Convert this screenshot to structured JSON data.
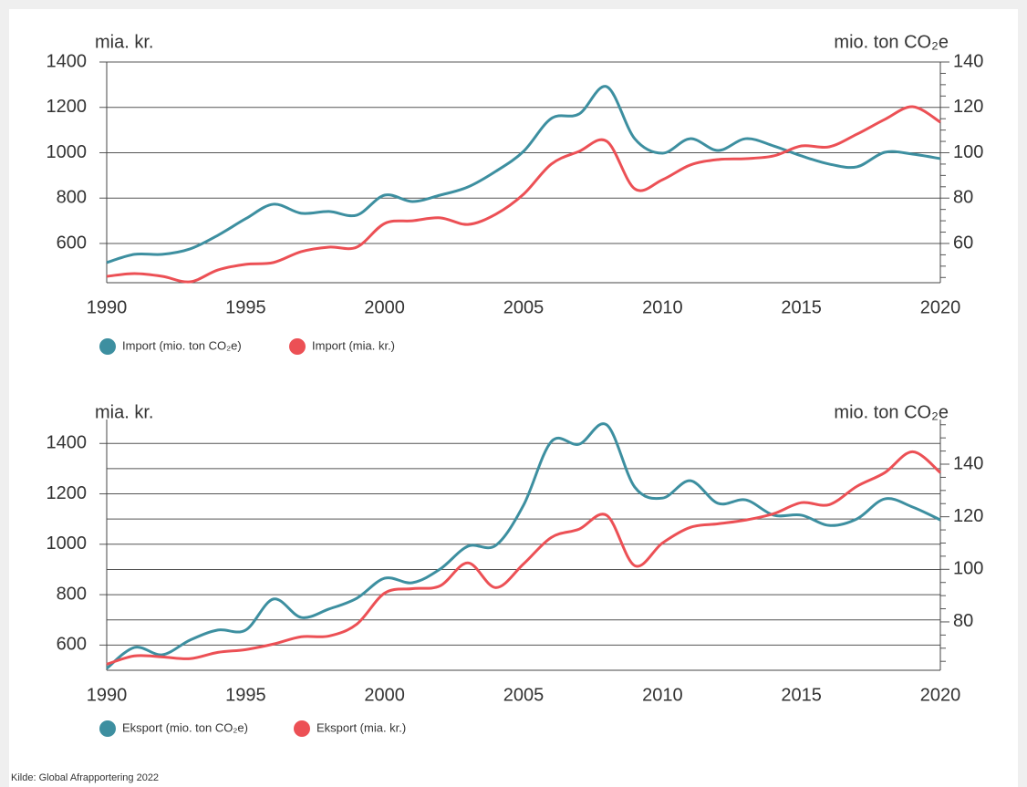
{
  "chart_data": [
    {
      "type": "line",
      "ylabel": "mia. kr.",
      "y2label": "mio. ton CO₂e",
      "x": [
        1990,
        1991,
        1992,
        1993,
        1994,
        1995,
        1996,
        1997,
        1998,
        1999,
        2000,
        2001,
        2002,
        2003,
        2004,
        2005,
        2006,
        2007,
        2008,
        2009,
        2010,
        2011,
        2012,
        2013,
        2014,
        2015,
        2016,
        2017,
        2018,
        2019,
        2020
      ],
      "xlim": [
        1990,
        2020
      ],
      "xticks": [
        1990,
        1995,
        2000,
        2005,
        2010,
        2015,
        2020
      ],
      "ylim": [
        427,
        1400
      ],
      "yticks": [
        600,
        800,
        1000,
        1200,
        1400
      ],
      "y2lim": [
        42.7,
        140
      ],
      "y2ticks": [
        60,
        80,
        100,
        120,
        140
      ],
      "y2minor": [
        45,
        50,
        55,
        65,
        70,
        75,
        85,
        90,
        95,
        105,
        110,
        115,
        125,
        130,
        135
      ],
      "grid": true,
      "series": [
        {
          "name": "Import (mio. ton CO₂e)",
          "color": "#3d8fa0",
          "axis": "y2",
          "values": [
            51.6,
            55.2,
            55.2,
            57.6,
            63.6,
            70.9,
            77.3,
            73.3,
            74.1,
            72.5,
            81.3,
            78.5,
            81.3,
            84.9,
            91.8,
            100.6,
            115.1,
            117.1,
            129.1,
            106.2,
            99.8,
            106.2,
            101,
            106.2,
            103,
            98.6,
            95,
            93.8,
            100.2,
            99.4,
            97.4
          ]
        },
        {
          "name": "Import (mia. kr.)",
          "color": "#ec5055",
          "values": [
            455,
            467,
            455,
            431,
            483,
            508,
            516,
            564,
            584,
            584,
            688,
            700,
            713,
            684,
            729,
            817,
            950,
            1006,
            1050,
            841,
            881,
            946,
            970,
            974,
            986,
            1030,
            1026,
            1082,
            1147,
            1203,
            1135
          ]
        }
      ]
    },
    {
      "type": "line",
      "ylabel": "mia. kr.",
      "y2label": "mio. ton CO₂e",
      "x": [
        1990,
        1991,
        1992,
        1993,
        1994,
        1995,
        1996,
        1997,
        1998,
        1999,
        2000,
        2001,
        2002,
        2003,
        2004,
        2005,
        2006,
        2007,
        2008,
        2009,
        2010,
        2011,
        2012,
        2013,
        2014,
        2015,
        2016,
        2017,
        2018,
        2019,
        2020
      ],
      "xlim": [
        1990,
        2020
      ],
      "xticks": [
        1990,
        1995,
        2000,
        2005,
        2010,
        2015,
        2020
      ],
      "ylim": [
        500,
        1495
      ],
      "yticks": [
        600,
        800,
        1000,
        1200,
        1400
      ],
      "yminor": [
        700,
        900,
        1100,
        1300
      ],
      "y2lim": [
        61.6,
        157
      ],
      "y2ticks": [
        80,
        100,
        120,
        140
      ],
      "y2minor": [
        65,
        70,
        75,
        85,
        90,
        95,
        105,
        110,
        115,
        125,
        130,
        135,
        145,
        150,
        155
      ],
      "grid": true,
      "series": [
        {
          "name": "Eksport (mio. ton CO₂e)",
          "color": "#3d8fa0",
          "axis": "y2",
          "values": [
            62.3,
            70.3,
            67.5,
            73.1,
            76.9,
            76.9,
            88.7,
            81.7,
            84.9,
            89,
            96.6,
            94.9,
            100.1,
            108.8,
            109.1,
            124.4,
            148.6,
            147.6,
            154.9,
            131.3,
            127.1,
            133.7,
            125.1,
            126.4,
            120.6,
            120.6,
            116.7,
            119.2,
            126.8,
            123.7,
            118.8
          ]
        },
        {
          "name": "Eksport (mia. kr.)",
          "color": "#ec5055",
          "values": [
            524,
            557,
            553,
            546,
            571,
            582,
            604,
            633,
            636,
            683,
            806,
            824,
            835,
            926,
            828,
            922,
            1027,
            1060,
            1114,
            915,
            1005,
            1067,
            1081,
            1096,
            1121,
            1165,
            1157,
            1230,
            1284,
            1367,
            1284
          ]
        }
      ]
    }
  ],
  "source": "Kilde: Global Afrapportering 2022"
}
